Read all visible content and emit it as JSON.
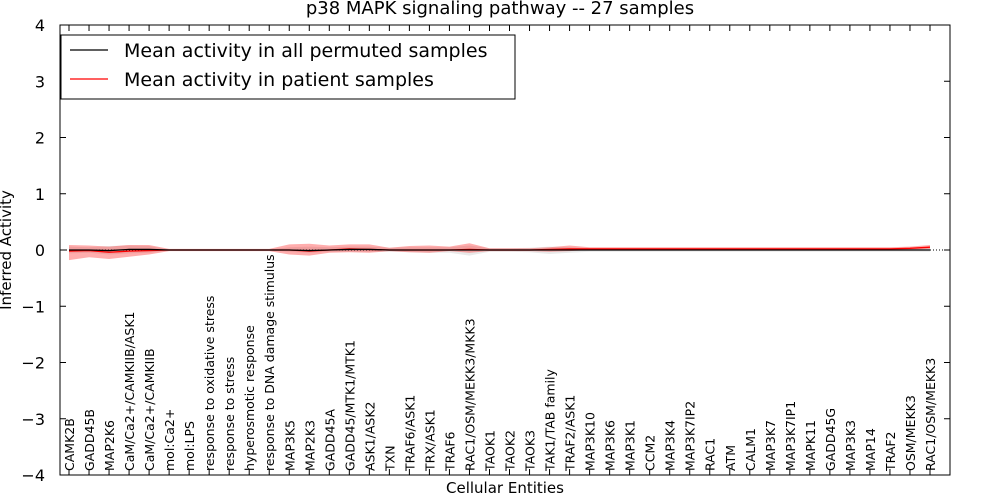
{
  "chart_data": {
    "type": "line",
    "title": "p38 MAPK signaling pathway -- 27 samples",
    "xlabel": "Cellular Entities",
    "ylabel": "Inferred Activity",
    "ylim": [
      -4,
      4
    ],
    "yticks": [
      "−4",
      "−3",
      "−2",
      "−1",
      "0",
      "1",
      "2",
      "3",
      "4"
    ],
    "legend_position": "top-left",
    "categories": [
      "CAMK2B",
      "GADD45B",
      "MAP2K6",
      "CaM/Ca2+/CAMKIIB/ASK1",
      "CaM/Ca2+/CAMKIIB",
      "mol:Ca2+",
      "mol:LPS",
      "response to oxidative stress",
      "response to stress",
      "hyperosmotic response",
      "response to DNA damage stimulus",
      "MAP3K5",
      "MAP2K3",
      "GADD45A",
      "GADD45/MTK1/MTK1",
      "ASK1/ASK2",
      "TXN",
      "TRAF6/ASK1",
      "TRX/ASK1",
      "TRAF6",
      "RAC1/OSM/MEKK3/MKK3",
      "TAOK1",
      "TAOK2",
      "TAOK3",
      "TAK1/TAB family",
      "TRAF2/ASK1",
      "MAP3K10",
      "MAP3K6",
      "MAP3K1",
      "CCM2",
      "MAP3K4",
      "MAP3K7IP2",
      "RAC1",
      "ATM",
      "CALM1",
      "MAP3K7",
      "MAP3K7IP1",
      "MAPK11",
      "GADD45G",
      "MAP3K3",
      "MAP14",
      "TRAF2",
      "OSM/MEKK3",
      "RAC1/OSM/MEKK3"
    ],
    "series": [
      {
        "name": "Mean activity in all permuted samples",
        "color": "#000000",
        "values": [
          0.0,
          0.0,
          -0.01,
          0.01,
          0.01,
          0.0,
          0.0,
          0.0,
          0.0,
          0.0,
          0.0,
          0.0,
          -0.01,
          0.0,
          0.01,
          0.01,
          0.0,
          0.0,
          0.0,
          0.0,
          0.0,
          0.0,
          0.0,
          0.0,
          0.0,
          0.0,
          0.0,
          0.0,
          0.0,
          0.0,
          0.0,
          0.0,
          0.0,
          0.0,
          0.0,
          0.0,
          0.0,
          0.0,
          0.0,
          0.0,
          0.0,
          0.0,
          0.0,
          0.0
        ],
        "band_low": [
          -0.06,
          -0.05,
          -0.08,
          -0.06,
          -0.05,
          -0.01,
          -0.01,
          -0.01,
          -0.01,
          -0.01,
          -0.01,
          -0.03,
          -0.05,
          -0.03,
          -0.03,
          -0.03,
          -0.03,
          -0.04,
          -0.05,
          -0.05,
          -0.1,
          -0.03,
          -0.03,
          -0.04,
          -0.07,
          -0.05,
          -0.03,
          -0.03,
          -0.03,
          -0.03,
          -0.03,
          -0.03,
          -0.03,
          -0.03,
          -0.03,
          -0.03,
          -0.03,
          -0.03,
          -0.03,
          -0.03,
          -0.03,
          -0.03,
          -0.03,
          -0.03
        ],
        "band_high": [
          0.06,
          0.05,
          0.07,
          0.08,
          0.07,
          0.01,
          0.01,
          0.01,
          0.01,
          0.01,
          0.01,
          0.05,
          0.06,
          0.05,
          0.06,
          0.06,
          0.04,
          0.05,
          0.05,
          0.05,
          0.08,
          0.03,
          0.03,
          0.04,
          0.06,
          0.05,
          0.03,
          0.03,
          0.03,
          0.03,
          0.03,
          0.03,
          0.03,
          0.03,
          0.03,
          0.03,
          0.03,
          0.03,
          0.03,
          0.03,
          0.03,
          0.03,
          0.03,
          0.03
        ]
      },
      {
        "name": "Mean activity in patient samples",
        "color": "#ff0000",
        "values": [
          -0.02,
          -0.01,
          -0.04,
          -0.02,
          -0.01,
          0.0,
          0.0,
          0.0,
          0.0,
          0.0,
          0.0,
          0.0,
          -0.02,
          0.0,
          0.02,
          0.01,
          0.0,
          0.0,
          0.0,
          0.0,
          0.01,
          0.0,
          0.0,
          0.0,
          0.01,
          0.02,
          0.02,
          0.02,
          0.02,
          0.02,
          0.02,
          0.02,
          0.02,
          0.02,
          0.02,
          0.02,
          0.02,
          0.02,
          0.02,
          0.02,
          0.02,
          0.02,
          0.03,
          0.05
        ],
        "band_low": [
          -0.18,
          -0.13,
          -0.16,
          -0.12,
          -0.08,
          -0.02,
          -0.02,
          -0.02,
          -0.02,
          -0.02,
          -0.02,
          -0.08,
          -0.1,
          -0.05,
          -0.04,
          -0.05,
          -0.02,
          -0.04,
          -0.05,
          -0.02,
          -0.05,
          -0.02,
          -0.02,
          -0.02,
          -0.03,
          -0.02,
          0.0,
          0.0,
          0.0,
          0.0,
          0.0,
          0.0,
          0.0,
          0.0,
          0.0,
          0.0,
          0.0,
          0.0,
          0.0,
          0.0,
          0.0,
          0.0,
          0.01,
          0.02
        ],
        "band_high": [
          0.09,
          0.08,
          0.06,
          0.09,
          0.09,
          0.02,
          0.02,
          0.02,
          0.02,
          0.02,
          0.02,
          0.1,
          0.11,
          0.08,
          0.1,
          0.1,
          0.04,
          0.07,
          0.08,
          0.06,
          0.12,
          0.03,
          0.03,
          0.03,
          0.05,
          0.08,
          0.05,
          0.05,
          0.05,
          0.05,
          0.05,
          0.05,
          0.05,
          0.05,
          0.05,
          0.05,
          0.05,
          0.05,
          0.05,
          0.05,
          0.05,
          0.05,
          0.06,
          0.09
        ]
      }
    ]
  }
}
